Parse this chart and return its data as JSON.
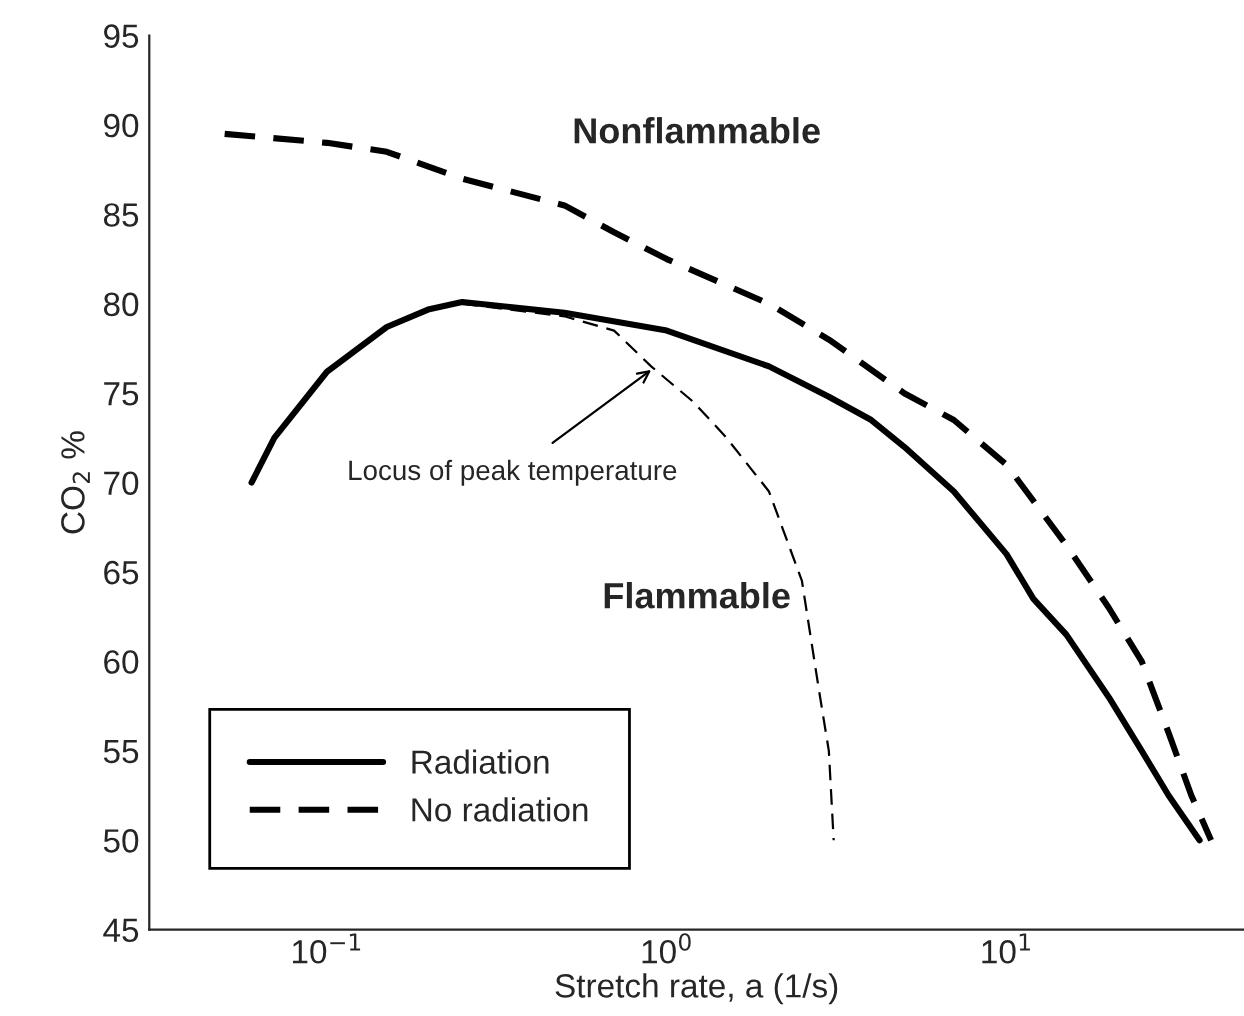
{
  "chart_data": {
    "type": "line",
    "xlabel": "Stretch rate, a (1/s)",
    "ylabel": "CO$_{2}$ %",
    "log": "x",
    "xlim": [
      0.03,
      50
    ],
    "ylim": [
      45,
      95
    ],
    "xticks": [
      {
        "value": 0.1,
        "label": "10$^{−1}$"
      },
      {
        "value": 1,
        "label": "10$^{0}$"
      },
      {
        "value": 10,
        "label": "10$^{1}$"
      }
    ],
    "yticks": [
      45,
      50,
      55,
      60,
      65,
      70,
      75,
      80,
      85,
      90,
      95
    ],
    "grid": false,
    "legend": "bottom left",
    "marker": "none",
    "series": [
      {
        "name": "Radiation",
        "color": "#000000",
        "line_style": "solid",
        "x": [
          0.06,
          0.07,
          0.1,
          0.15,
          0.2,
          0.25,
          0.5,
          1.0,
          2.0,
          3,
          4,
          5,
          7,
          10,
          12,
          15,
          20,
          25,
          30,
          37
        ],
        "values": [
          70,
          72.5,
          76.2,
          78.7,
          79.7,
          80.1,
          79.5,
          78.5,
          76.5,
          74.8,
          73.5,
          72,
          69.5,
          66,
          63.5,
          61.5,
          58,
          55,
          52.5,
          50
        ]
      },
      {
        "name": "No radiation",
        "color": "#000000",
        "line_style": "dashed",
        "x": [
          0.05,
          0.1,
          0.15,
          0.25,
          0.5,
          0.7,
          1.0,
          2,
          3,
          5,
          7,
          10,
          15,
          20,
          25,
          30,
          35,
          40
        ],
        "values": [
          89.5,
          89,
          88.5,
          87,
          85.5,
          84,
          82.5,
          80,
          78,
          75,
          73.5,
          71,
          66.5,
          63,
          60,
          56,
          52.5,
          50
        ]
      },
      {
        "color": "#000000",
        "line_style": "dashed",
        "x": [
          0.25,
          0.5,
          0.7,
          0.9,
          1.2,
          1.5,
          2,
          2.5,
          2.8,
          3.0,
          3.1
        ],
        "values": [
          80,
          79.3,
          78.5,
          76.5,
          74.5,
          72.5,
          69.5,
          64.5,
          58.5,
          55,
          50
        ]
      }
    ],
    "annotations": [
      {
        "text": "Locus of peak temperature",
        "x": 0.9,
        "y": 76.3
      },
      "Nonflammable",
      "Flammable"
    ]
  }
}
